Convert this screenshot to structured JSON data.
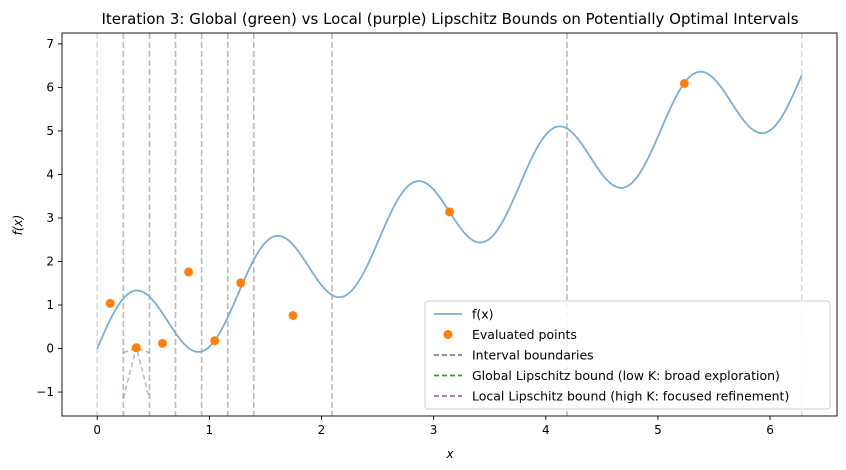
{
  "chart_data": {
    "type": "line",
    "title": "Iteration 3: Global (green) vs Local (purple) Lipschitz Bounds on Potentially Optimal Intervals",
    "xlabel": "x",
    "ylabel": "f(x)",
    "xlim": [
      -0.314,
      6.597
    ],
    "ylim": [
      -1.55,
      7.25
    ],
    "xticks": [
      0,
      1,
      2,
      3,
      4,
      5,
      6
    ],
    "yticks": [
      -1,
      0,
      1,
      2,
      3,
      4,
      5,
      6,
      7
    ],
    "function": {
      "name": "f(x)",
      "expression": "sin(5x) + x",
      "domain": [
        0,
        6.283
      ],
      "color": "#7aafd2"
    },
    "evaluated_points": {
      "name": "Evaluated points",
      "color": "#ff7f0e",
      "x": [
        0.116,
        0.349,
        0.582,
        0.815,
        1.048,
        1.28,
        1.746,
        3.142,
        5.236
      ],
      "y": [
        1.04,
        0.02,
        0.12,
        1.76,
        0.18,
        1.51,
        0.76,
        3.14,
        6.09
      ]
    },
    "interval_boundaries": {
      "name": "Interval boundaries",
      "color": "#808080",
      "x": [
        0,
        0.233,
        0.466,
        0.698,
        0.931,
        1.164,
        1.396,
        2.094,
        4.189,
        6.283
      ]
    },
    "global_bound": {
      "name": "Global Lipschitz bound (low K: broad exploration)",
      "color": "#2ca02c",
      "center_x": 0.349,
      "center_y": 0.02,
      "halfwidth": 0.116,
      "K": 1.0
    },
    "local_bound": {
      "name": "Local Lipschitz bound (high K: focused refinement)",
      "color": "#9467bd",
      "center_x": 0.349,
      "center_y": 0.02,
      "halfwidth": 0.116,
      "K": 10.0
    },
    "legend": {
      "position": "lower-right"
    },
    "grid": false
  }
}
